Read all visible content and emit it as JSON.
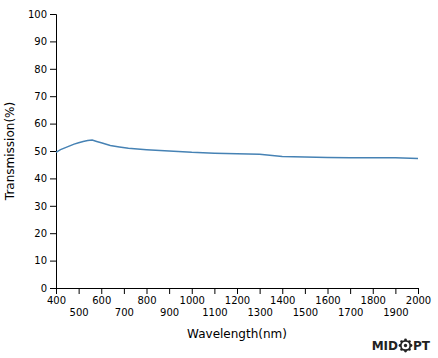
{
  "chart_data": {
    "type": "line",
    "xlabel": "Wavelength(nm)",
    "ylabel": "Transmission(%)",
    "x": [
      400,
      420,
      450,
      480,
      500,
      520,
      540,
      560,
      580,
      600,
      640,
      680,
      720,
      800,
      900,
      1000,
      1100,
      1200,
      1300,
      1400,
      1500,
      1600,
      1700,
      1800,
      1900,
      2000
    ],
    "values": [
      49.5,
      50.5,
      51.5,
      52.5,
      53.0,
      53.5,
      53.8,
      54.0,
      53.5,
      53.0,
      52.0,
      51.5,
      51.0,
      50.5,
      50.0,
      49.5,
      49.2,
      49.0,
      48.8,
      48.0,
      47.8,
      47.6,
      47.5,
      47.5,
      47.5,
      47.3
    ],
    "xlim": [
      400,
      2000
    ],
    "ylim": [
      0,
      100
    ],
    "xticks": [
      400,
      500,
      600,
      700,
      800,
      900,
      1000,
      1100,
      1200,
      1300,
      1400,
      1500,
      1600,
      1700,
      1800,
      1900,
      2000
    ],
    "yticks": [
      0,
      10,
      20,
      30,
      40,
      50,
      60,
      70,
      80,
      90,
      100
    ],
    "grid": false,
    "annotations": [
      "MID",
      "PT"
    ]
  }
}
